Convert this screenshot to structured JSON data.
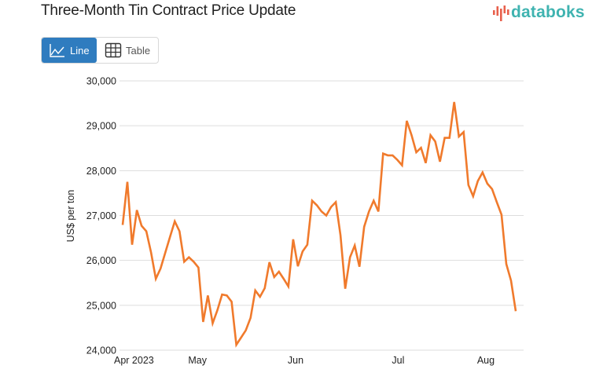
{
  "header": {
    "title": "Three-Month Tin Contract Price Update",
    "brand": "databoks",
    "brand_color": "#3fb3b0",
    "brand_bar_color": "#e8604c"
  },
  "view_tabs": [
    {
      "label": "Line",
      "icon": "line-chart-icon",
      "active": true
    },
    {
      "label": "Table",
      "icon": "table-grid-icon",
      "active": false
    }
  ],
  "colors": {
    "line": "#f07a2c",
    "grid": "#dddddd",
    "active_tab": "#2f7cbf"
  },
  "chart_data": {
    "type": "line",
    "title": "Three-Month Tin Contract Price Update",
    "xlabel": "",
    "ylabel": "US$ per ton",
    "ylim": [
      24000,
      30000
    ],
    "y_ticks": [
      24000,
      25000,
      26000,
      27000,
      28000,
      29000,
      30000
    ],
    "y_tick_labels": [
      "24,000",
      "25,000",
      "26,000",
      "27,000",
      "28,000",
      "29,000",
      "30,000"
    ],
    "x_tick_labels": [
      {
        "label": "Apr 2023",
        "index": 0
      },
      {
        "label": "May",
        "index": 16
      },
      {
        "label": "Jun",
        "index": 37
      },
      {
        "label": "Jul",
        "index": 59
      },
      {
        "label": "Aug",
        "index": 77
      }
    ],
    "grid": true,
    "legend": "none",
    "series": [
      {
        "name": "Three-Month Tin Contract Price",
        "values": [
          26790,
          27750,
          26350,
          27120,
          26770,
          26650,
          26180,
          25590,
          25820,
          26170,
          26520,
          26870,
          26650,
          25970,
          26070,
          25970,
          25840,
          24630,
          25220,
          24600,
          24890,
          25240,
          25220,
          25080,
          24120,
          24280,
          24440,
          24720,
          25330,
          25190,
          25380,
          25960,
          25630,
          25750,
          25590,
          25420,
          26470,
          25870,
          26200,
          26350,
          27330,
          27230,
          27090,
          27000,
          27190,
          27300,
          26560,
          25370,
          26070,
          26330,
          25860,
          26750,
          27090,
          27330,
          27090,
          28380,
          28340,
          28340,
          28240,
          28120,
          29110,
          28790,
          28410,
          28510,
          28170,
          28790,
          28650,
          28200,
          28730,
          28730,
          29530,
          28760,
          28860,
          27680,
          27430,
          27770,
          27960,
          27710,
          27590,
          27300,
          27020,
          25920,
          25550,
          24870
        ]
      }
    ]
  }
}
